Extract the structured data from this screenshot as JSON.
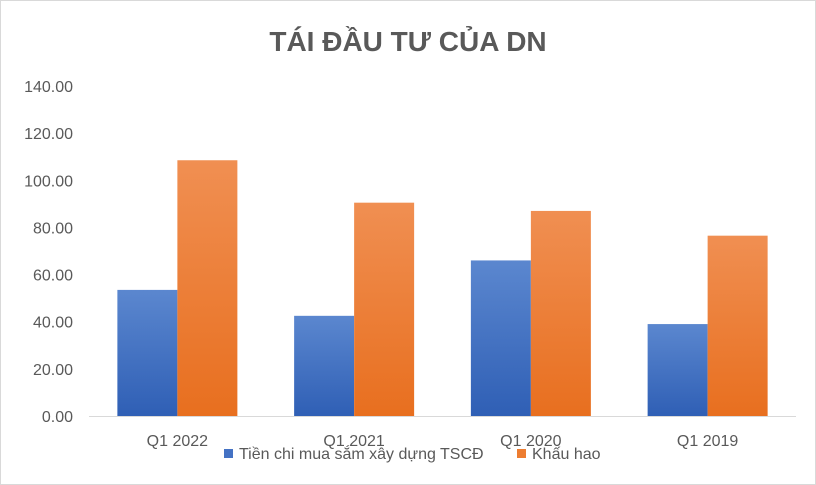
{
  "chart_data": {
    "type": "bar",
    "title": "TÁI ĐẦU TƯ CỦA DN",
    "xlabel": "",
    "ylabel": "",
    "categories": [
      "Q1 2022",
      "Q1 2021",
      "Q1 2020",
      "Q1 2019"
    ],
    "series": [
      {
        "name": "Tiền chi mua sắm xây dựng TSCĐ",
        "values": [
          53.5,
          42.5,
          66.0,
          39.0
        ],
        "color": "#4472C4"
      },
      {
        "name": "Khấu hao",
        "values": [
          108.5,
          90.5,
          87.0,
          76.5
        ],
        "color": "#ED7D31"
      }
    ],
    "ylim": [
      0,
      140
    ],
    "yticks": [
      "0.00",
      "20.00",
      "40.00",
      "60.00",
      "80.00",
      "100.00",
      "120.00",
      "140.00"
    ],
    "grid": false,
    "legend_position": "bottom"
  }
}
